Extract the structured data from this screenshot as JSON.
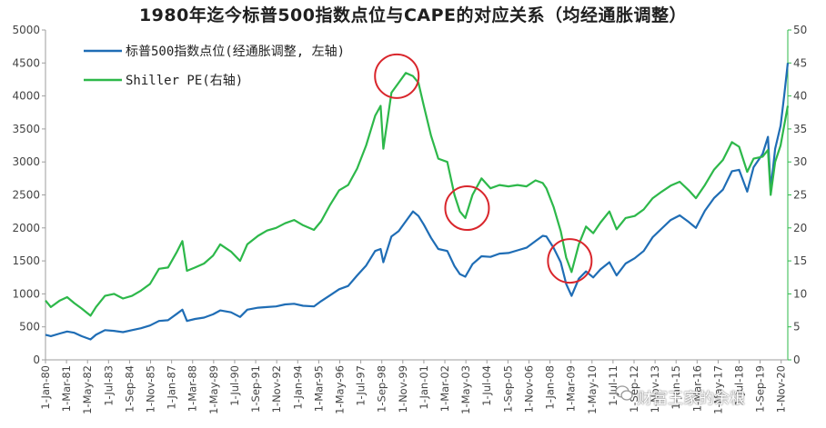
{
  "chart_data": {
    "type": "line",
    "title": "1980年迄今标普500指数点位与CAPE的对应关系（均经通胀调整）",
    "left_axis": {
      "ylim": [
        0,
        5000
      ],
      "ticks": [
        0,
        500,
        1000,
        1500,
        2000,
        2500,
        3000,
        3500,
        4000,
        4500,
        5000
      ]
    },
    "right_axis": {
      "ylim": [
        0,
        50
      ],
      "ticks": [
        0,
        5,
        10,
        15,
        20,
        25,
        30,
        35,
        40,
        45,
        50
      ]
    },
    "x_range": [
      1980.0,
      2021.2
    ],
    "x_tick_labels": [
      "1-Jan-80",
      "1-Mar-81",
      "1-May-82",
      "1-Jul-83",
      "1-Sep-84",
      "1-Nov-85",
      "1-Jan-87",
      "1-Mar-88",
      "1-May-89",
      "1-Jul-90",
      "1-Sep-91",
      "1-Nov-92",
      "1-Jan-94",
      "1-Mar-95",
      "1-May-96",
      "1-Jul-97",
      "1-Sep-98",
      "1-Nov-99",
      "1-Jan-01",
      "1-Mar-02",
      "1-May-03",
      "1-Jul-04",
      "1-Sep-05",
      "1-Nov-06",
      "1-Jan-08",
      "1-Mar-09",
      "1-May-10",
      "1-Jul-11",
      "1-Sep-12",
      "1-Nov-13",
      "1-Jan-15",
      "1-Mar-16",
      "1-May-17",
      "1-Jul-18",
      "1-Sep-19",
      "1-Nov-20"
    ],
    "legend_position": "top-left",
    "series": [
      {
        "name": "标普500指数点位(经通胀调整, 左轴)",
        "axis": "left",
        "color": "#1f6db5",
        "points": [
          [
            1980.0,
            380
          ],
          [
            1980.3,
            360
          ],
          [
            1980.8,
            400
          ],
          [
            1981.2,
            430
          ],
          [
            1981.6,
            410
          ],
          [
            1982.0,
            360
          ],
          [
            1982.5,
            310
          ],
          [
            1982.8,
            380
          ],
          [
            1983.3,
            450
          ],
          [
            1983.8,
            440
          ],
          [
            1984.3,
            420
          ],
          [
            1984.8,
            450
          ],
          [
            1985.3,
            480
          ],
          [
            1985.8,
            520
          ],
          [
            1986.3,
            590
          ],
          [
            1986.8,
            600
          ],
          [
            1987.3,
            700
          ],
          [
            1987.6,
            760
          ],
          [
            1987.85,
            590
          ],
          [
            1988.3,
            620
          ],
          [
            1988.8,
            640
          ],
          [
            1989.3,
            690
          ],
          [
            1989.7,
            750
          ],
          [
            1990.3,
            720
          ],
          [
            1990.8,
            650
          ],
          [
            1991.2,
            760
          ],
          [
            1991.8,
            790
          ],
          [
            1992.3,
            800
          ],
          [
            1992.8,
            810
          ],
          [
            1993.3,
            840
          ],
          [
            1993.8,
            850
          ],
          [
            1994.3,
            820
          ],
          [
            1994.9,
            810
          ],
          [
            1995.3,
            890
          ],
          [
            1995.8,
            980
          ],
          [
            1996.3,
            1070
          ],
          [
            1996.8,
            1120
          ],
          [
            1997.3,
            1280
          ],
          [
            1997.8,
            1430
          ],
          [
            1998.3,
            1650
          ],
          [
            1998.6,
            1680
          ],
          [
            1998.75,
            1480
          ],
          [
            1999.2,
            1870
          ],
          [
            1999.6,
            1950
          ],
          [
            2000.0,
            2100
          ],
          [
            2000.4,
            2250
          ],
          [
            2000.7,
            2180
          ],
          [
            2001.0,
            2050
          ],
          [
            2001.4,
            1850
          ],
          [
            2001.8,
            1680
          ],
          [
            2002.3,
            1650
          ],
          [
            2002.7,
            1420
          ],
          [
            2003.0,
            1300
          ],
          [
            2003.3,
            1260
          ],
          [
            2003.7,
            1450
          ],
          [
            2004.2,
            1570
          ],
          [
            2004.7,
            1560
          ],
          [
            2005.2,
            1610
          ],
          [
            2005.7,
            1620
          ],
          [
            2006.2,
            1660
          ],
          [
            2006.7,
            1700
          ],
          [
            2007.2,
            1800
          ],
          [
            2007.6,
            1880
          ],
          [
            2007.8,
            1870
          ],
          [
            2008.2,
            1700
          ],
          [
            2008.6,
            1480
          ],
          [
            2008.9,
            1150
          ],
          [
            2009.2,
            970
          ],
          [
            2009.6,
            1230
          ],
          [
            2010.0,
            1340
          ],
          [
            2010.4,
            1250
          ],
          [
            2010.8,
            1370
          ],
          [
            2011.3,
            1480
          ],
          [
            2011.7,
            1280
          ],
          [
            2012.2,
            1460
          ],
          [
            2012.7,
            1540
          ],
          [
            2013.2,
            1650
          ],
          [
            2013.7,
            1860
          ],
          [
            2014.2,
            1990
          ],
          [
            2014.7,
            2120
          ],
          [
            2015.2,
            2190
          ],
          [
            2015.7,
            2090
          ],
          [
            2016.1,
            2000
          ],
          [
            2016.6,
            2260
          ],
          [
            2017.1,
            2450
          ],
          [
            2017.6,
            2580
          ],
          [
            2018.1,
            2860
          ],
          [
            2018.5,
            2880
          ],
          [
            2018.95,
            2550
          ],
          [
            2019.3,
            2920
          ],
          [
            2019.8,
            3120
          ],
          [
            2020.1,
            3380
          ],
          [
            2020.25,
            2580
          ],
          [
            2020.5,
            3200
          ],
          [
            2020.8,
            3550
          ],
          [
            2021.0,
            4000
          ],
          [
            2021.2,
            4500
          ]
        ]
      },
      {
        "name": "Shiller PE(右轴)",
        "axis": "right",
        "color": "#2db84a",
        "points": [
          [
            1980.0,
            9.0
          ],
          [
            1980.3,
            8.0
          ],
          [
            1980.8,
            9.0
          ],
          [
            1981.2,
            9.5
          ],
          [
            1981.6,
            8.6
          ],
          [
            1982.0,
            7.8
          ],
          [
            1982.5,
            6.7
          ],
          [
            1982.8,
            8.0
          ],
          [
            1983.3,
            9.7
          ],
          [
            1983.8,
            10.0
          ],
          [
            1984.3,
            9.3
          ],
          [
            1984.8,
            9.7
          ],
          [
            1985.3,
            10.5
          ],
          [
            1985.8,
            11.5
          ],
          [
            1986.3,
            13.8
          ],
          [
            1986.8,
            14.0
          ],
          [
            1987.3,
            16.4
          ],
          [
            1987.6,
            18.0
          ],
          [
            1987.85,
            13.5
          ],
          [
            1988.3,
            14.0
          ],
          [
            1988.8,
            14.6
          ],
          [
            1989.3,
            15.8
          ],
          [
            1989.7,
            17.5
          ],
          [
            1990.3,
            16.4
          ],
          [
            1990.8,
            15.0
          ],
          [
            1991.2,
            17.5
          ],
          [
            1991.8,
            18.8
          ],
          [
            1992.3,
            19.6
          ],
          [
            1992.8,
            20.0
          ],
          [
            1993.3,
            20.7
          ],
          [
            1993.8,
            21.2
          ],
          [
            1994.3,
            20.4
          ],
          [
            1994.9,
            19.7
          ],
          [
            1995.3,
            21.0
          ],
          [
            1995.8,
            23.5
          ],
          [
            1996.3,
            25.7
          ],
          [
            1996.8,
            26.5
          ],
          [
            1997.3,
            29.0
          ],
          [
            1997.8,
            32.5
          ],
          [
            1998.3,
            37.0
          ],
          [
            1998.6,
            38.5
          ],
          [
            1998.75,
            32.0
          ],
          [
            1999.2,
            40.5
          ],
          [
            1999.6,
            42.0
          ],
          [
            2000.0,
            43.5
          ],
          [
            2000.4,
            43.0
          ],
          [
            2000.7,
            42.0
          ],
          [
            2001.0,
            38.5
          ],
          [
            2001.4,
            34.0
          ],
          [
            2001.8,
            30.5
          ],
          [
            2002.3,
            30.0
          ],
          [
            2002.7,
            25.0
          ],
          [
            2003.0,
            22.5
          ],
          [
            2003.3,
            21.5
          ],
          [
            2003.7,
            25.0
          ],
          [
            2004.2,
            27.5
          ],
          [
            2004.7,
            26.0
          ],
          [
            2005.2,
            26.5
          ],
          [
            2005.7,
            26.3
          ],
          [
            2006.2,
            26.5
          ],
          [
            2006.7,
            26.3
          ],
          [
            2007.2,
            27.2
          ],
          [
            2007.6,
            26.8
          ],
          [
            2007.8,
            26.0
          ],
          [
            2008.2,
            23.2
          ],
          [
            2008.6,
            19.5
          ],
          [
            2008.9,
            15.5
          ],
          [
            2009.2,
            13.3
          ],
          [
            2009.6,
            17.5
          ],
          [
            2010.0,
            20.2
          ],
          [
            2010.4,
            19.2
          ],
          [
            2010.8,
            20.8
          ],
          [
            2011.3,
            22.5
          ],
          [
            2011.7,
            19.8
          ],
          [
            2012.2,
            21.5
          ],
          [
            2012.7,
            21.8
          ],
          [
            2013.2,
            22.8
          ],
          [
            2013.7,
            24.5
          ],
          [
            2014.2,
            25.5
          ],
          [
            2014.7,
            26.4
          ],
          [
            2015.2,
            27.0
          ],
          [
            2015.7,
            25.7
          ],
          [
            2016.1,
            24.5
          ],
          [
            2016.6,
            26.5
          ],
          [
            2017.1,
            28.8
          ],
          [
            2017.6,
            30.3
          ],
          [
            2018.1,
            33.0
          ],
          [
            2018.5,
            32.3
          ],
          [
            2018.95,
            28.5
          ],
          [
            2019.3,
            30.5
          ],
          [
            2019.8,
            30.8
          ],
          [
            2020.1,
            31.8
          ],
          [
            2020.25,
            25.0
          ],
          [
            2020.5,
            30.0
          ],
          [
            2020.8,
            32.5
          ],
          [
            2021.0,
            35.5
          ],
          [
            2021.2,
            38.5
          ]
        ]
      }
    ],
    "annotations": [
      {
        "type": "circle",
        "x": 1999.5,
        "y": 4300,
        "axis": "left",
        "color": "#d9262c"
      },
      {
        "type": "circle",
        "x": 2003.4,
        "y": 2300,
        "axis": "left",
        "color": "#d9262c"
      },
      {
        "type": "circle",
        "x": 2009.1,
        "y": 1500,
        "axis": "left",
        "color": "#d9262c"
      }
    ]
  },
  "watermark": {
    "text": "财富王家的余粮",
    "icon": "wechat-icon"
  }
}
